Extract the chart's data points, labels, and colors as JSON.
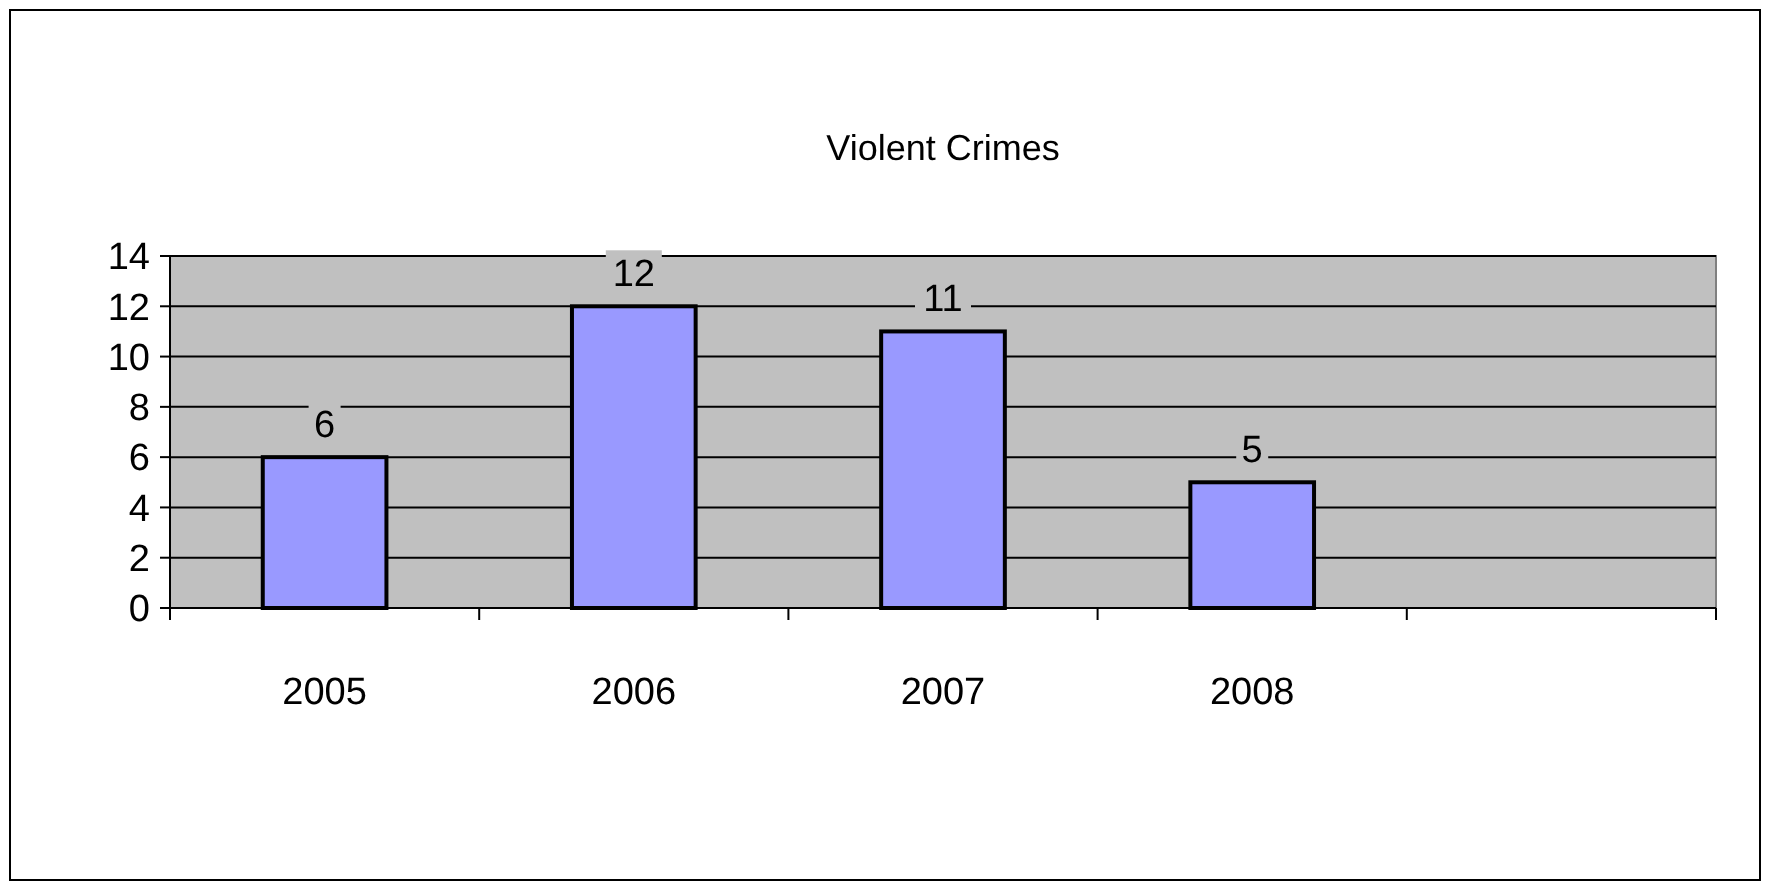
{
  "chart_data": {
    "type": "bar",
    "title": "Violent Crimes",
    "categories": [
      "2005",
      "2006",
      "2007",
      "2008",
      null
    ],
    "values": [
      6,
      12,
      11,
      5,
      null
    ],
    "color": "#9999ff",
    "ylim": [
      0,
      14
    ],
    "yticks": [
      0,
      2,
      4,
      6,
      8,
      10,
      12,
      14
    ],
    "grid": "y",
    "data_labels": true
  }
}
